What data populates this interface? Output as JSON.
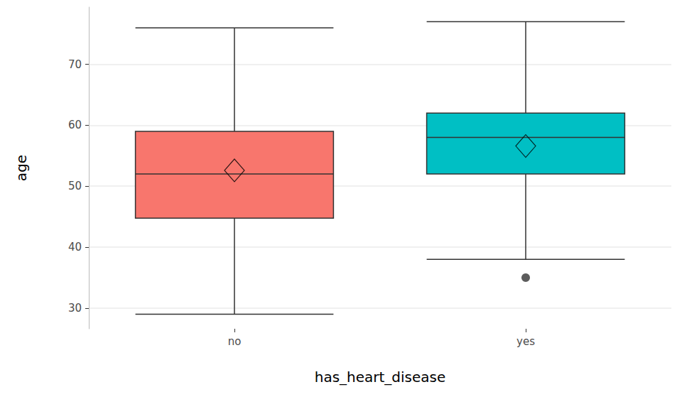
{
  "chart_data": {
    "type": "boxplot",
    "x_label": "has_heart_disease",
    "y_label": "age",
    "categories": [
      "no",
      "yes"
    ],
    "boxes": [
      {
        "min": 29,
        "q1": 44.75,
        "median": 52,
        "q3": 59,
        "max": 76,
        "mean": 52.6,
        "outliers": []
      },
      {
        "min": 38,
        "q1": 52,
        "median": 58,
        "q3": 62,
        "max": 77,
        "mean": 56.6,
        "outliers": [
          35
        ]
      }
    ],
    "colors": [
      "#F8766D",
      "#00BFC4"
    ],
    "marker": "diamond",
    "ylim": [
      26.6,
      79.4
    ],
    "yticks": [
      30,
      40,
      50,
      60,
      70
    ],
    "grid": true
  }
}
